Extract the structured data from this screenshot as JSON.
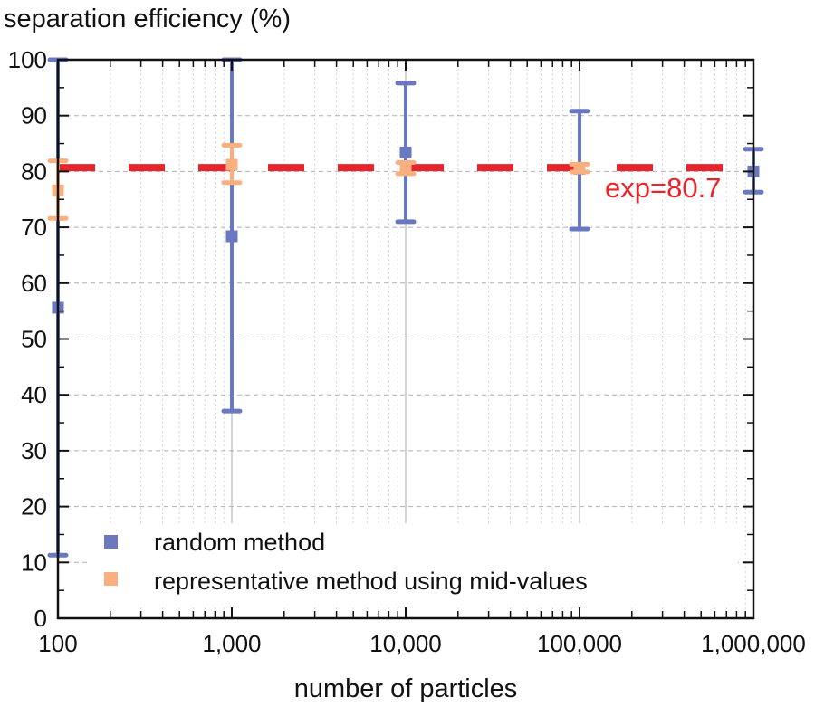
{
  "chart_data": {
    "type": "scatter",
    "title": "",
    "ylabel": "separation efficiency (%)",
    "xlabel": "number of particles",
    "xscale": "log",
    "xlim": [
      100,
      1000000
    ],
    "ylim": [
      0,
      100
    ],
    "grid": true,
    "x_ticks": [
      100,
      1000,
      10000,
      100000,
      1000000
    ],
    "x_tick_labels": [
      "100",
      "1,000",
      "10,000",
      "100,000",
      "1,000,000"
    ],
    "y_ticks": [
      0,
      10,
      20,
      30,
      40,
      50,
      60,
      70,
      80,
      90,
      100
    ],
    "y_tick_labels": [
      "0",
      "10",
      "20",
      "30",
      "40",
      "50",
      "60",
      "70",
      "80",
      "90",
      "100"
    ],
    "series": [
      {
        "name": "random method",
        "color": "#6a78c0",
        "points": [
          {
            "x": 100,
            "y": 55.6,
            "ymin": 11.3,
            "ymax": 100
          },
          {
            "x": 1000,
            "y": 68.4,
            "ymin": 37.1,
            "ymax": 100
          },
          {
            "x": 10000,
            "y": 83.4,
            "ymin": 71.0,
            "ymax": 95.8
          },
          {
            "x": 100000,
            "y": 80.5,
            "ymin": 69.7,
            "ymax": 90.8
          },
          {
            "x": 1000000,
            "y": 80.0,
            "ymin": 76.3,
            "ymax": 84.0
          }
        ]
      },
      {
        "name": "representative method using mid-values",
        "color": "#f9b07e",
        "points": [
          {
            "x": 100,
            "y": 76.6,
            "ymin": 71.6,
            "ymax": 81.9
          },
          {
            "x": 1000,
            "y": 81.2,
            "ymin": 78.0,
            "ymax": 84.7
          },
          {
            "x": 10000,
            "y": 80.6,
            "ymin": 79.6,
            "ymax": 81.6
          },
          {
            "x": 100000,
            "y": 80.6,
            "ymin": 79.9,
            "ymax": 81.3
          }
        ]
      }
    ],
    "reference_line": {
      "label": "exp=80.7",
      "y": 80.7,
      "color": "#e8232a",
      "style": "dashed"
    },
    "legend": {
      "position": "bottom-left",
      "entries": [
        "random method",
        "representative method using mid-values"
      ]
    }
  }
}
